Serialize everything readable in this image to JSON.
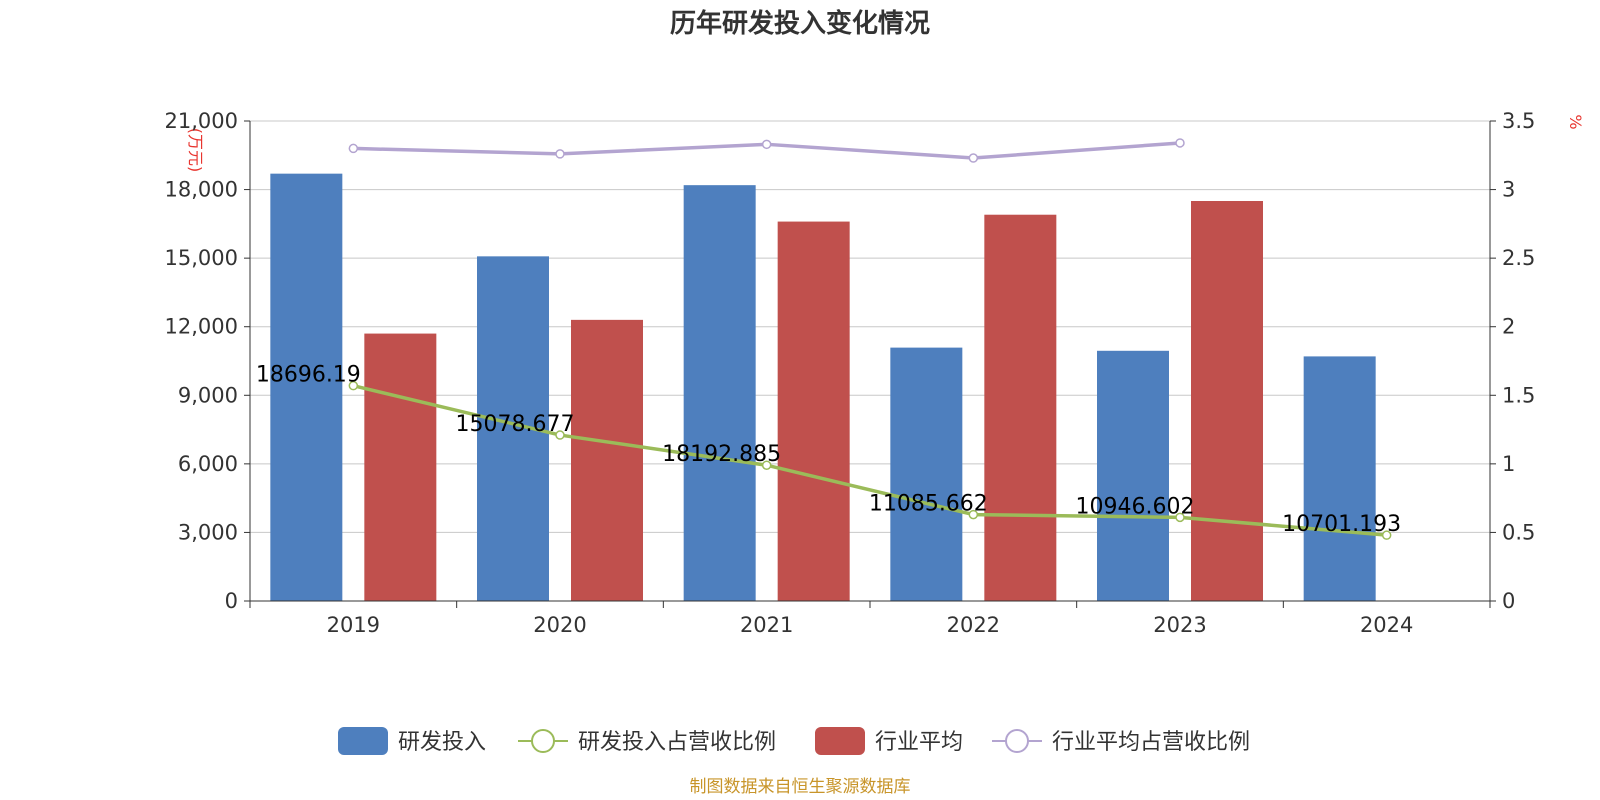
{
  "title": "历年研发投入变化情况",
  "source_note": "制图数据来自恒生聚源数据库",
  "colors": {
    "rd_bar": "#4e7fbe",
    "industry_bar": "#c0504d",
    "rd_ratio_line": "#9bbb59",
    "industry_ratio_line": "#b3a4d0",
    "axis_unit": "#e8352f",
    "source": "#c8952a",
    "grid": "#c8c8c8"
  },
  "chart_data": {
    "type": "bar",
    "categories": [
      "2019",
      "2020",
      "2021",
      "2022",
      "2023",
      "2024"
    ],
    "left_axis": {
      "unit_label": "(万元)",
      "ylim": [
        0,
        21000
      ],
      "ticks": [
        "0",
        "3,000",
        "6,000",
        "9,000",
        "12,000",
        "15,000",
        "18,000",
        "21,000"
      ],
      "tick_values": [
        0,
        3000,
        6000,
        9000,
        12000,
        15000,
        18000,
        21000
      ]
    },
    "right_axis": {
      "unit_label": "%",
      "ylim": [
        0,
        3.5
      ],
      "ticks": [
        "0",
        "0.5",
        "1",
        "1.5",
        "2",
        "2.5",
        "3",
        "3.5"
      ],
      "tick_values": [
        0,
        0.5,
        1,
        1.5,
        2,
        2.5,
        3,
        3.5
      ]
    },
    "grid": true,
    "legend_position": "bottom",
    "series": [
      {
        "name": "研发投入",
        "kind": "bar",
        "axis": "left",
        "values": [
          18696.19,
          15078.677,
          18192.885,
          11085.662,
          10946.602,
          10701.193
        ],
        "labels": [
          "18696.19",
          "15078.677",
          "18192.885",
          "11085.662",
          "10946.602",
          "10701.193"
        ]
      },
      {
        "name": "研发投入占营收比例",
        "kind": "line",
        "axis": "right",
        "values": [
          1.57,
          1.21,
          0.99,
          0.63,
          0.61,
          0.48
        ]
      },
      {
        "name": "行业平均",
        "kind": "bar",
        "axis": "left",
        "values": [
          11700,
          12300,
          16600,
          16900,
          17500,
          null
        ]
      },
      {
        "name": "行业平均占营收比例",
        "kind": "line",
        "axis": "right",
        "values": [
          3.3,
          3.26,
          3.33,
          3.23,
          3.34,
          null
        ]
      }
    ]
  }
}
